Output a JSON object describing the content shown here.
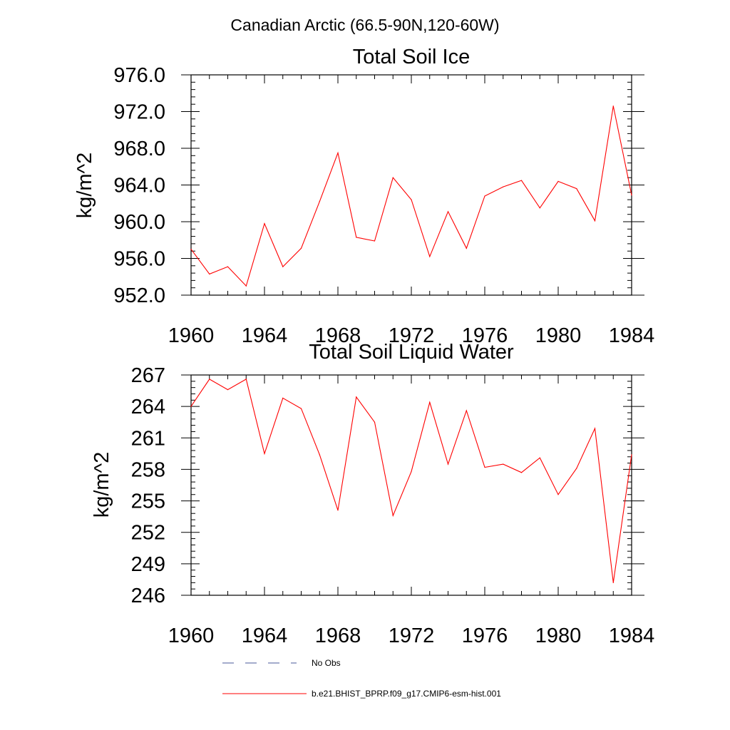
{
  "figure_title": "Canadian Arctic (66.5-90N,120-60W)",
  "chart_data": [
    {
      "type": "line",
      "title": "Total Soil Ice",
      "xlabel": "",
      "ylabel": "kg/m^2",
      "xlim": [
        1960,
        1984
      ],
      "ylim": [
        952,
        976
      ],
      "xticks": [
        1960,
        1964,
        1968,
        1972,
        1976,
        1980,
        1984
      ],
      "xtick_labels": [
        "1960",
        "1964",
        "1968",
        "1972",
        "1976",
        "1980",
        "1984"
      ],
      "yticks": [
        952,
        956,
        960,
        964,
        968,
        972,
        976
      ],
      "ytick_labels": [
        "952.0",
        "956.0",
        "960.0",
        "964.0",
        "968.0",
        "972.0",
        "976.0"
      ],
      "x": [
        1960,
        1961,
        1962,
        1963,
        1964,
        1965,
        1966,
        1967,
        1968,
        1969,
        1970,
        1971,
        1972,
        1973,
        1974,
        1975,
        1976,
        1977,
        1978,
        1979,
        1980,
        1981,
        1982,
        1983,
        1984
      ],
      "series": [
        {
          "name": "b.e21.BHIST_BPRP.f09_g17.CMIP6-esm-hist.001",
          "color": "#ff0000",
          "values": [
            957.0,
            954.3,
            955.1,
            953.0,
            959.8,
            955.1,
            957.1,
            962.2,
            967.5,
            958.3,
            957.9,
            964.8,
            962.4,
            956.2,
            961.1,
            957.1,
            962.8,
            963.8,
            964.5,
            961.5,
            964.4,
            963.6,
            960.1,
            972.6,
            962.9
          ]
        }
      ]
    },
    {
      "type": "line",
      "title": "Total Soil Liquid Water",
      "xlabel": "",
      "ylabel": "kg/m^2",
      "xlim": [
        1960,
        1984
      ],
      "ylim": [
        246,
        267
      ],
      "xticks": [
        1960,
        1964,
        1968,
        1972,
        1976,
        1980,
        1984
      ],
      "xtick_labels": [
        "1960",
        "1964",
        "1968",
        "1972",
        "1976",
        "1980",
        "1984"
      ],
      "yticks": [
        246,
        249,
        252,
        255,
        258,
        261,
        264,
        267
      ],
      "ytick_labels": [
        "246",
        "249",
        "252",
        "255",
        "258",
        "261",
        "264",
        "267"
      ],
      "x": [
        1960,
        1961,
        1962,
        1963,
        1964,
        1965,
        1966,
        1967,
        1968,
        1969,
        1970,
        1971,
        1972,
        1973,
        1974,
        1975,
        1976,
        1977,
        1978,
        1979,
        1980,
        1981,
        1982,
        1983,
        1984
      ],
      "series": [
        {
          "name": "b.e21.BHIST_BPRP.f09_g17.CMIP6-esm-hist.001",
          "color": "#ff0000",
          "values": [
            264.0,
            266.6,
            265.6,
            266.6,
            259.5,
            264.8,
            263.8,
            259.4,
            254.1,
            264.9,
            262.5,
            253.6,
            257.8,
            264.4,
            258.5,
            263.6,
            258.2,
            258.5,
            257.7,
            259.1,
            255.6,
            258.1,
            261.9,
            247.2,
            259.4
          ]
        }
      ]
    }
  ],
  "legend": {
    "placement": "bottom",
    "entries": [
      {
        "label": "No Obs",
        "style": "dashed",
        "color": "#4a5a9a"
      },
      {
        "label": "b.e21.BHIST_BPRP.f09_g17.CMIP6-esm-hist.001",
        "style": "solid",
        "color": "#ff0000"
      }
    ]
  }
}
